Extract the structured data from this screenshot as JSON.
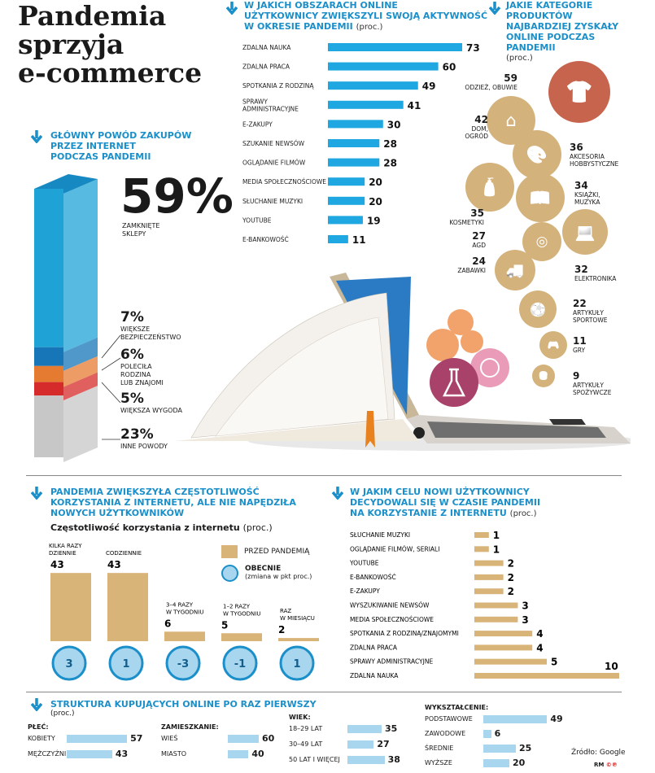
{
  "title": [
    "Pandemia",
    "sprzyja",
    "e-commerce"
  ],
  "reason": {
    "header": [
      "GŁÓWNY POWÓD ZAKUPÓW",
      "PRZEZ INTERNET",
      "PODCZAS PANDEMII"
    ],
    "items": [
      {
        "value": "59%",
        "label": [
          "ZAMKNIĘTE",
          "SKLEPY"
        ],
        "pct": 59,
        "color": "#1fa3d6"
      },
      {
        "value": "7%",
        "label": [
          "WIĘKSZE",
          "BEZPIECZEŃSTWO"
        ],
        "pct": 7,
        "color": "#1676b8"
      },
      {
        "value": "6%",
        "label": [
          "POLECIŁA",
          "RODZINA",
          "LUB ZNAJOMI"
        ],
        "pct": 6,
        "color": "#e57b30"
      },
      {
        "value": "5%",
        "label": [
          "WIĘKSZA WYGODA"
        ],
        "pct": 5,
        "color": "#d62b2b"
      },
      {
        "value": "23%",
        "label": [
          "INNE POWODY"
        ],
        "pct": 23,
        "color": "#c7c7c7"
      }
    ]
  },
  "activity": {
    "header": [
      "W JAKICH OBSZARACH ONLINE",
      "UŻYTKOWNICY ZWIĘKSZYLI SWOJĄ AKTYWNOŚĆ",
      "W OKRESIE PANDEMII"
    ],
    "unit": "(proc.)",
    "items": [
      {
        "label": [
          "ZDALNA NAUKA"
        ],
        "value": 73
      },
      {
        "label": [
          "ZDALNA PRACA"
        ],
        "value": 60
      },
      {
        "label": [
          "SPOTKANIA Z RODZINĄ"
        ],
        "value": 49
      },
      {
        "label": [
          "SPRAWY",
          "ADMINISTRACYJNE"
        ],
        "value": 41
      },
      {
        "label": [
          "E-ZAKUPY"
        ],
        "value": 30
      },
      {
        "label": [
          "SZUKANIE NEWSÓW"
        ],
        "value": 28
      },
      {
        "label": [
          "OGLĄDANIE FILMÓW"
        ],
        "value": 28
      },
      {
        "label": [
          "MEDIA SPOŁECZNOŚCIOWE"
        ],
        "value": 20
      },
      {
        "label": [
          "SŁUCHANIE MUZYKI"
        ],
        "value": 20
      },
      {
        "label": [
          "YOUTUBE"
        ],
        "value": 19
      },
      {
        "label": [
          "E-BANKOWOŚĆ"
        ],
        "value": 11
      }
    ]
  },
  "categories": {
    "header": [
      "JAKIE KATEGORIE",
      "PRODUKTÓW",
      "NAJBARDZIEJ ZYSKAŁY",
      "ONLINE PODCZAS",
      "PANDEMII"
    ],
    "unit": "(proc.)",
    "items": [
      {
        "value": "59",
        "label": [
          "ODZIEŻ, OBUWIE"
        ],
        "icon": "shirt-icon"
      },
      {
        "value": "42",
        "label": [
          "DOM,",
          "OGRÓD"
        ],
        "icon": "house-icon"
      },
      {
        "value": "36",
        "label": [
          "AKCESORIA",
          "HOBBYSTYCZNE"
        ],
        "icon": "palette-icon"
      },
      {
        "value": "35",
        "label": [
          "KOSMETYKI"
        ],
        "icon": "spray-icon"
      },
      {
        "value": "34",
        "label": [
          "KSIĄŻKI,",
          "MUZYKA"
        ],
        "icon": "book-icon"
      },
      {
        "value": "27",
        "label": [
          "AGD"
        ],
        "icon": "washer-icon"
      },
      {
        "value": "32",
        "label": [
          "ELEKTRONIKA"
        ],
        "icon": "laptop-icon"
      },
      {
        "value": "24",
        "label": [
          "ZABAWKI"
        ],
        "icon": "truck-icon"
      },
      {
        "value": "22",
        "label": [
          "ARTYKUŁY",
          "SPORTOWE"
        ],
        "icon": "ball-icon"
      },
      {
        "value": "11",
        "label": [
          "GRY"
        ],
        "icon": "gamepad-icon"
      },
      {
        "value": "9",
        "label": [
          "ARTYKUŁY",
          "SPOŻYWCZE"
        ],
        "icon": "food-icon"
      }
    ]
  },
  "frequency": {
    "header": [
      "PANDEMIA ZWIĘKSZYŁA CZĘSTOTLIWOŚĆ",
      "KORZYSTANIA Z INTERNETU, ALE NIE NAPĘDZIŁA",
      "NOWYCH UŻYTKOWNIKÓW"
    ],
    "subtitle": "Częstotliwość korzystania z internetu",
    "unit": "(proc.)",
    "legend_before": "PRZED PANDEMIĄ",
    "legend_now": "OBECNIE",
    "legend_now_note": "(zmiana w pkt proc.)",
    "items": [
      {
        "label": [
          "KILKA RAZY",
          "DZIENNIE"
        ],
        "before": 43,
        "change": "3"
      },
      {
        "label": [
          "CODZIENNIE"
        ],
        "before": 43,
        "change": "1"
      },
      {
        "label": [
          "3–4 RAZY",
          "W TYGODNIU"
        ],
        "before": 6,
        "change": "-3"
      },
      {
        "label": [
          "1–2 RAZY",
          "W TYGODNIU"
        ],
        "before": 5,
        "change": "-1"
      },
      {
        "label": [
          "RAZ",
          "W MIESIĄCU"
        ],
        "before": 2,
        "change": "1"
      }
    ]
  },
  "purpose": {
    "header": [
      "W JAKIM CELU NOWI UŻYTKOWNICY",
      "DECYDOWALI SIĘ W CZASIE PANDEMII",
      "NA KORZYSTANIE Z INTERNETU"
    ],
    "unit": "(proc.)",
    "items": [
      {
        "label": "SŁUCHANIE MUZYKI",
        "value": 1
      },
      {
        "label": "OGLĄDANIE FILMÓW, SERIALI",
        "value": 1
      },
      {
        "label": "YOUTUBE",
        "value": 2
      },
      {
        "label": "E-BANKOWOŚĆ",
        "value": 2
      },
      {
        "label": "E-ZAKUPY",
        "value": 2
      },
      {
        "label": "WYSZUKIWANIE NEWSÓW",
        "value": 3
      },
      {
        "label": "MEDIA SPOŁECZNOŚCIOWE",
        "value": 3
      },
      {
        "label": "SPOTKANIA Z RODZINĄ/ZNAJOMYMI",
        "value": 4
      },
      {
        "label": "ZDALNA PRACA",
        "value": 4
      },
      {
        "label": "SPRAWY ADMINISTRACYJNE",
        "value": 5
      },
      {
        "label": "ZDALNA NAUKA",
        "value": 10
      }
    ]
  },
  "structure": {
    "header": "STRUKTURA KUPUJĄCYCH ONLINE PO RAZ PIERWSZY",
    "unit": "(proc.)",
    "groups": [
      {
        "title": "PŁEĆ:",
        "items": [
          {
            "label": "KOBIETY",
            "value": 57
          },
          {
            "label": "MĘŻCZYŹNI",
            "value": 43
          }
        ]
      },
      {
        "title": "ZAMIESZKANIE:",
        "items": [
          {
            "label": "WIEŚ",
            "value": 60
          },
          {
            "label": "MIASTO",
            "value": 40
          }
        ]
      },
      {
        "title": "WIEK:",
        "items": [
          {
            "label": "18–29 LAT",
            "value": 35
          },
          {
            "label": "30–49 LAT",
            "value": 27
          },
          {
            "label": "50 LAT I WIĘCEJ",
            "value": 38
          }
        ]
      },
      {
        "title": "WYKSZTAŁCENIE:",
        "items": [
          {
            "label": "PODSTAWOWE",
            "value": 49
          },
          {
            "label": "ZAWODOWE",
            "value": 6
          },
          {
            "label": "ŚREDNIE",
            "value": 25
          },
          {
            "label": "WYŻSZE",
            "value": 20
          }
        ]
      }
    ]
  },
  "source": "Źródło: Google",
  "credit": "RM",
  "colors": {
    "blue": "#1a8fc9",
    "bar_blue": "#1ea7e1",
    "gold": "#d8b479",
    "light_blue": "#a9d6ef",
    "circle": "#d4b27c",
    "red_circle": "#c7644e"
  },
  "chart_data": [
    {
      "type": "bar",
      "categories": [
        "ZDALNA NAUKA",
        "ZDALNA PRACA",
        "SPOTKANIA Z RODZINĄ",
        "SPRAWY ADMINISTRACYJNE",
        "E-ZAKUPY",
        "SZUKANIE NEWSÓW",
        "OGLĄDANIE FILMÓW",
        "MEDIA SPOŁECZNOŚCIOWE",
        "SŁUCHANIE MUZYKI",
        "YOUTUBE",
        "E-BANKOWOŚĆ"
      ],
      "values": [
        73,
        60,
        49,
        41,
        30,
        28,
        28,
        20,
        20,
        19,
        11
      ]
    },
    {
      "type": "bar",
      "categories": [
        "ZAMKNIĘTE SKLEPY",
        "WIĘKSZE BEZPIECZEŃSTWO",
        "POLECIŁA RODZINA LUB ZNAJOMI",
        "WIĘKSZA WYGODA",
        "INNE POWODY"
      ],
      "values": [
        59,
        7,
        6,
        5,
        23
      ]
    },
    {
      "type": "bar",
      "categories": [
        "KILKA RAZY DZIENNIE",
        "CODZIENNIE",
        "3–4 RAZY W TYGODNIU",
        "1–2 RAZY W TYGODNIU",
        "RAZ W MIESIĄCU"
      ],
      "series": [
        {
          "name": "PRZED PANDEMIĄ",
          "values": [
            43,
            43,
            6,
            5,
            2
          ]
        },
        {
          "name": "OBECNIE",
          "values": [
            3,
            1,
            -3,
            -1,
            1
          ]
        }
      ]
    },
    {
      "type": "bar",
      "categories": [
        "SŁUCHANIE MUZYKI",
        "OGLĄDANIE FILMÓW, SERIALI",
        "YOUTUBE",
        "E-BANKOWOŚĆ",
        "E-ZAKUPY",
        "WYSZUKIWANIE NEWSÓW",
        "MEDIA SPOŁECZNOŚCIOWE",
        "SPOTKANIA Z RODZINĄ/ZNAJOMYMI",
        "ZDALNA PRACA",
        "SPRAWY ADMINISTRACYJNE",
        "ZDALNA NAUKA"
      ],
      "values": [
        1,
        1,
        2,
        2,
        2,
        3,
        3,
        4,
        4,
        5,
        10
      ]
    }
  ]
}
